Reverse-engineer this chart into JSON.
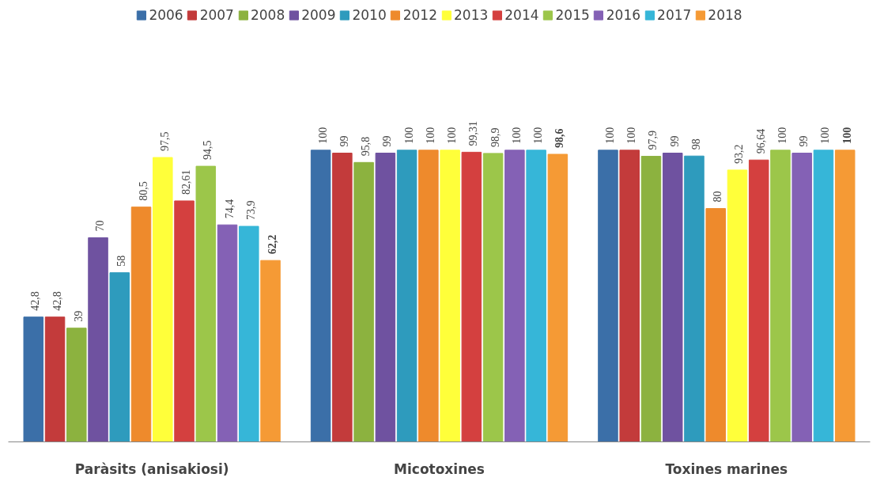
{
  "chart_data": {
    "type": "bar",
    "categories": [
      "Paràsits (anisakiosi)",
      "Micotoxines",
      "Toxines marines"
    ],
    "legend": "top",
    "grid": false,
    "tick_labels": "x",
    "series": [
      {
        "name": "2006",
        "color": "#3b6fa8",
        "values": [
          42.8,
          100,
          100
        ],
        "value_labels": [
          "42,8",
          "100",
          "100"
        ]
      },
      {
        "name": "2007",
        "color": "#c33b3b",
        "values": [
          42.8,
          99,
          100
        ],
        "value_labels": [
          "42,8",
          "99",
          "100"
        ]
      },
      {
        "name": "2008",
        "color": "#8cb23f",
        "values": [
          39,
          95.8,
          97.9
        ],
        "value_labels": [
          "39",
          "95,8",
          "97,9"
        ]
      },
      {
        "name": "2009",
        "color": "#6f52a0",
        "values": [
          70,
          99,
          99
        ],
        "value_labels": [
          "70",
          "99",
          "99"
        ]
      },
      {
        "name": "2010",
        "color": "#2e9bbd",
        "values": [
          58,
          100,
          98
        ],
        "value_labels": [
          "58",
          "100",
          "98"
        ]
      },
      {
        "name": "2012",
        "color": "#ee8a2c",
        "values": [
          80.5,
          100,
          80
        ],
        "value_labels": [
          "80,5",
          "100",
          "80"
        ]
      },
      {
        "name": "2013",
        "color": "#ffff3a",
        "values": [
          97.5,
          100,
          93.2
        ],
        "value_labels": [
          "97,5",
          "100",
          "93,2"
        ]
      },
      {
        "name": "2014",
        "color": "#d4403f",
        "values": [
          82.61,
          99.31,
          96.64
        ],
        "value_labels": [
          "82,61",
          "99,31",
          "96,64"
        ]
      },
      {
        "name": "2015",
        "color": "#9cc64a",
        "values": [
          94.5,
          98.9,
          100
        ],
        "value_labels": [
          "94,5",
          "98,9",
          "100"
        ]
      },
      {
        "name": "2016",
        "color": "#8461b5",
        "values": [
          74.4,
          100,
          99
        ],
        "value_labels": [
          "74,4",
          "100",
          "99"
        ]
      },
      {
        "name": "2017",
        "color": "#36b6d8",
        "values": [
          73.9,
          100,
          100
        ],
        "value_labels": [
          "73,9",
          "100",
          "100"
        ]
      },
      {
        "name": "2018",
        "color": "#f59a35",
        "values": [
          62.2,
          98.6,
          100
        ],
        "value_labels": [
          "62,2",
          "98,6",
          "100"
        ]
      }
    ]
  }
}
